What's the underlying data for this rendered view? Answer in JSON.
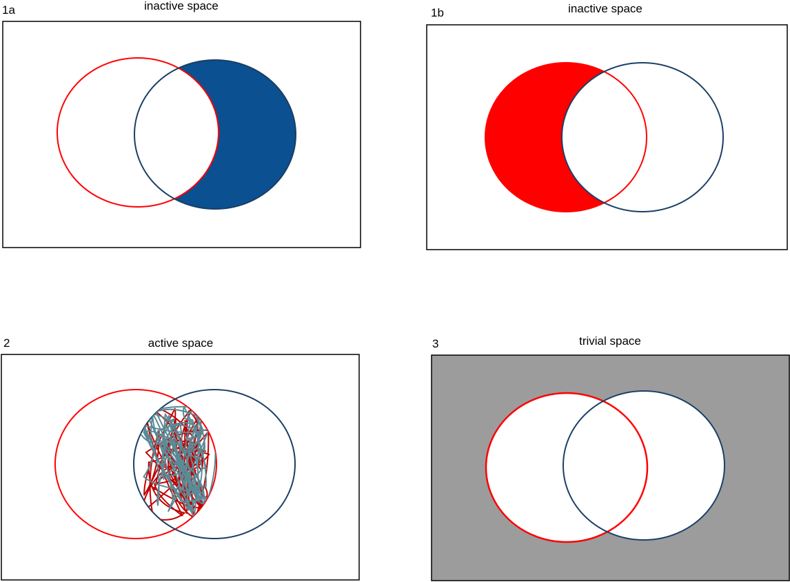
{
  "colors": {
    "red": "#ff0000",
    "navy": "#1a3f66",
    "fill_blue": "#0b5091",
    "gray": "#9c9c9c",
    "tangle_red": "#c00000",
    "tangle_teal": "#5a8a96"
  },
  "panels": [
    {
      "id": "1a",
      "label": "1a",
      "title": "inactive space",
      "shading": "right-crescent"
    },
    {
      "id": "1b",
      "label": "1b",
      "title": "inactive space",
      "shading": "left-crescent"
    },
    {
      "id": "2",
      "label": "2",
      "title": "active space",
      "shading": "tangled-overlap"
    },
    {
      "id": "3",
      "label": "3",
      "title": "trivial space",
      "shading": "outside-circles"
    }
  ]
}
